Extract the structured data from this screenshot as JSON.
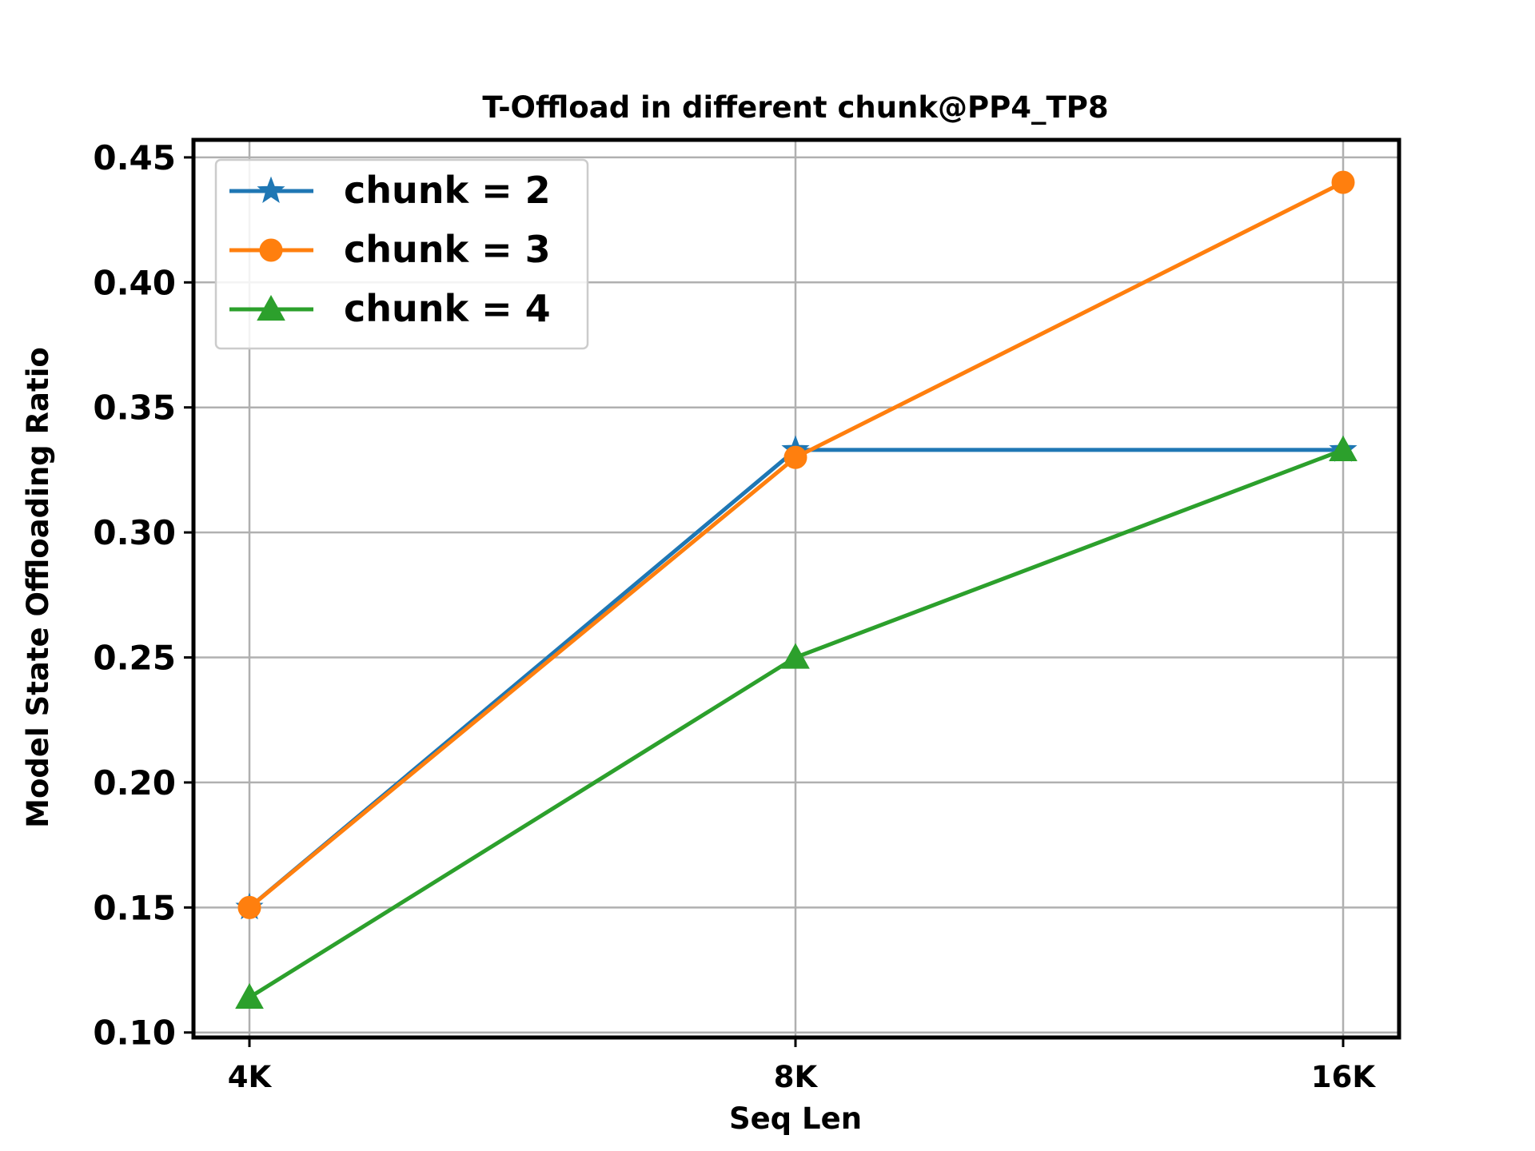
{
  "chart_data": {
    "type": "line",
    "title": "T-Offload in different chunk@PP4_TP8",
    "xlabel": "Seq Len",
    "ylabel": "Model State Offloading Ratio",
    "categories": [
      "4K",
      "8K",
      "16K"
    ],
    "ylim": [
      0.098,
      0.457
    ],
    "yticks": [
      "0.10",
      "0.15",
      "0.20",
      "0.25",
      "0.30",
      "0.35",
      "0.40",
      "0.45"
    ],
    "grid": true,
    "legend_position": "top-left",
    "series": [
      {
        "name": "chunk = 2",
        "values": [
          0.15,
          0.333,
          0.333
        ],
        "color": "#1f77b4",
        "marker": "star"
      },
      {
        "name": "chunk = 3",
        "values": [
          0.15,
          0.33,
          0.44
        ],
        "color": "#ff7f0e",
        "marker": "circle"
      },
      {
        "name": "chunk = 4",
        "values": [
          0.114,
          0.25,
          0.333
        ],
        "color": "#2ca02c",
        "marker": "triangle"
      }
    ]
  }
}
